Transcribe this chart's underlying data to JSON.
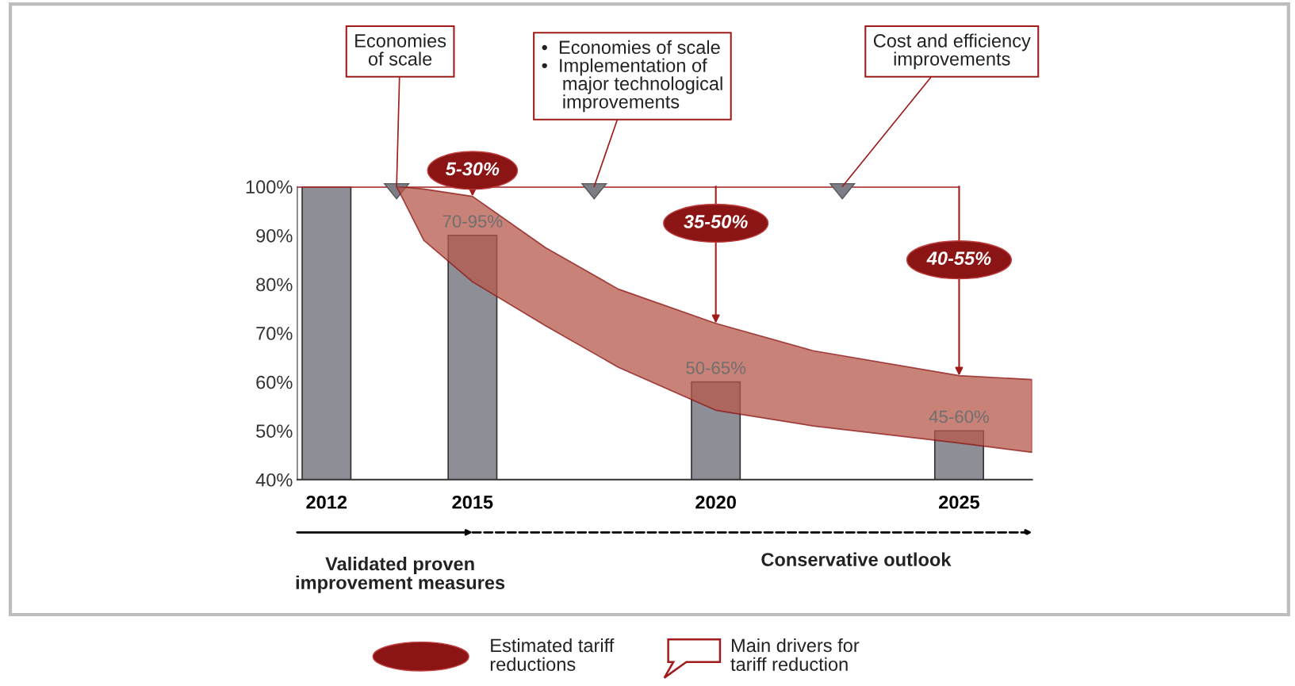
{
  "chart_data": {
    "type": "bar",
    "x": [
      2012,
      2015,
      2020,
      2025
    ],
    "series": [
      {
        "type": "bar",
        "color": "#8e8f96",
        "values": [
          100,
          90,
          60,
          50
        ]
      },
      {
        "type": "area",
        "color": "#b5584a",
        "x": [
          2013.44,
          2014,
          2015,
          2016.5,
          2018,
          2020,
          2022,
          2025,
          2026.5
        ],
        "values": [
          null,
          null,
          null,
          null,
          null,
          null,
          null,
          null,
          null
        ],
        "upper": [
          100,
          99.5,
          98,
          87.5,
          79,
          72,
          66.4,
          61.3,
          60.5
        ],
        "lower": [
          100,
          89,
          80.5,
          71.5,
          63,
          54.2,
          51,
          47.5,
          45.6
        ]
      }
    ],
    "xlim": [
      2011.4,
      2026.5
    ],
    "ylim": [
      40,
      100
    ],
    "xticks": [
      2012,
      2015,
      2020,
      2025
    ],
    "yticks": [
      {
        "value": 40,
        "label": "40%"
      },
      {
        "value": 50,
        "label": "50%"
      },
      {
        "value": 60,
        "label": "60%"
      },
      {
        "value": 70,
        "label": "70%"
      },
      {
        "value": 80,
        "label": "80%"
      },
      {
        "value": 90,
        "label": "90%"
      },
      {
        "value": 100,
        "label": "100%"
      }
    ],
    "ref_lines": [
      {
        "axis": "y",
        "value": 100,
        "color": "#a01c1c"
      }
    ],
    "annotations": [
      {
        "text": "Economies\nof scale",
        "x": 2013.44,
        "y": 100
      },
      {
        "text": "•  Economies of scale\n•  Implementation of\n    major technological\n    improvements",
        "x": 2017.5,
        "y": 100
      },
      {
        "text": "Cost and efficiency\nimprovements",
        "x": 2022.6,
        "y": 100
      },
      {
        "text": "5-30%",
        "x": 2015,
        "y": 98
      },
      {
        "text": "35-50%",
        "x": 2020,
        "y": 72
      },
      {
        "text": "40-55%",
        "x": 2025,
        "y": 61.3
      },
      {
        "text": "70-95%",
        "x": 2015,
        "y": 90
      },
      {
        "text": "50-65%",
        "x": 2020,
        "y": 60
      },
      {
        "text": "45-60%",
        "x": 2025,
        "y": 50
      },
      "Validated proven\nimprovement measures",
      "Conservative outlook",
      "Estimated tariff\nreductions",
      "Main drivers for\ntariff reduction"
    ],
    "grid": false
  }
}
